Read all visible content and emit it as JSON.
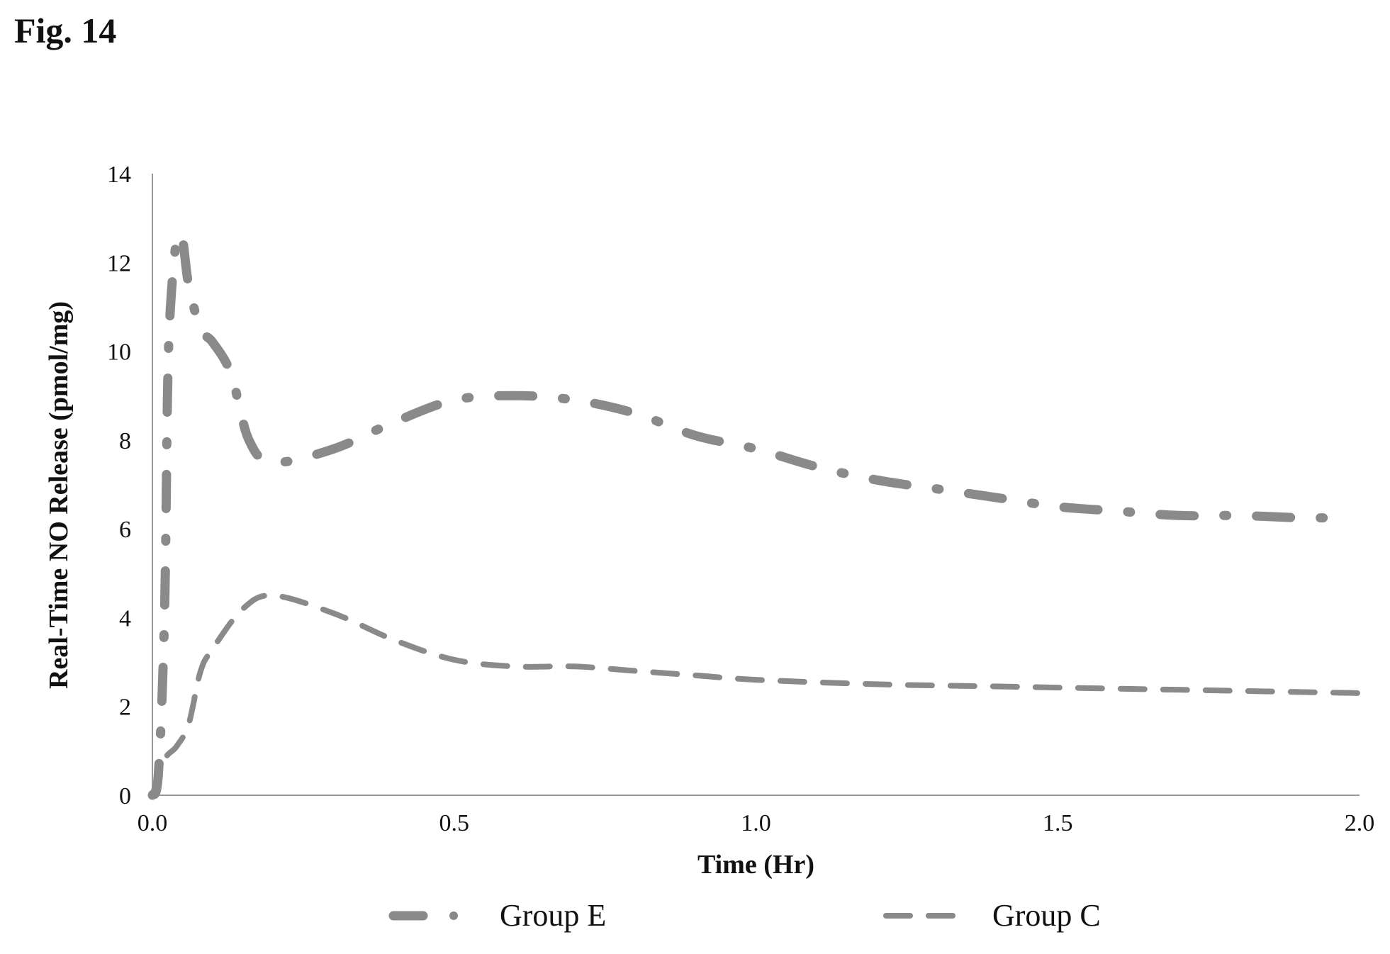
{
  "figure": {
    "label": "Fig. 14"
  },
  "chart_data": {
    "type": "line",
    "title": "",
    "xlabel": "Time (Hr)",
    "ylabel": "Real-Time NO Release (pmol/mg)",
    "xlim": [
      0,
      2
    ],
    "ylim": [
      0,
      14
    ],
    "x_ticks": [
      "0.0",
      "0.5",
      "1.0",
      "1.5",
      "2.0"
    ],
    "y_ticks": [
      "0",
      "2",
      "4",
      "6",
      "8",
      "10",
      "12",
      "14"
    ],
    "grid": false,
    "legend_position": "bottom",
    "series": [
      {
        "name": "Group E",
        "style": "dash-dot",
        "color": "#8a8a8a",
        "points": [
          [
            0.0,
            0.0
          ],
          [
            0.01,
            0.5
          ],
          [
            0.02,
            4.0
          ],
          [
            0.025,
            9.0
          ],
          [
            0.03,
            11.0
          ],
          [
            0.04,
            12.5
          ],
          [
            0.05,
            12.5
          ],
          [
            0.06,
            11.5
          ],
          [
            0.08,
            10.5
          ],
          [
            0.1,
            10.2
          ],
          [
            0.13,
            9.5
          ],
          [
            0.16,
            8.0
          ],
          [
            0.2,
            7.5
          ],
          [
            0.3,
            7.8
          ],
          [
            0.4,
            8.4
          ],
          [
            0.5,
            8.9
          ],
          [
            0.6,
            9.0
          ],
          [
            0.7,
            8.9
          ],
          [
            0.8,
            8.6
          ],
          [
            0.9,
            8.1
          ],
          [
            1.0,
            7.8
          ],
          [
            1.1,
            7.4
          ],
          [
            1.2,
            7.1
          ],
          [
            1.3,
            6.9
          ],
          [
            1.4,
            6.7
          ],
          [
            1.5,
            6.5
          ],
          [
            1.6,
            6.4
          ],
          [
            1.7,
            6.3
          ],
          [
            1.8,
            6.3
          ],
          [
            1.9,
            6.25
          ],
          [
            1.95,
            6.25
          ]
        ]
      },
      {
        "name": "Group C",
        "style": "dashed",
        "color": "#8a8a8a",
        "points": [
          [
            0.0,
            0.0
          ],
          [
            0.02,
            0.8
          ],
          [
            0.04,
            1.1
          ],
          [
            0.06,
            1.6
          ],
          [
            0.08,
            2.8
          ],
          [
            0.1,
            3.3
          ],
          [
            0.15,
            4.2
          ],
          [
            0.2,
            4.5
          ],
          [
            0.3,
            4.1
          ],
          [
            0.4,
            3.5
          ],
          [
            0.5,
            3.05
          ],
          [
            0.6,
            2.9
          ],
          [
            0.7,
            2.9
          ],
          [
            0.8,
            2.8
          ],
          [
            0.9,
            2.7
          ],
          [
            1.0,
            2.6
          ],
          [
            1.2,
            2.5
          ],
          [
            1.4,
            2.45
          ],
          [
            1.6,
            2.4
          ],
          [
            1.8,
            2.35
          ],
          [
            2.0,
            2.3
          ]
        ]
      }
    ]
  }
}
